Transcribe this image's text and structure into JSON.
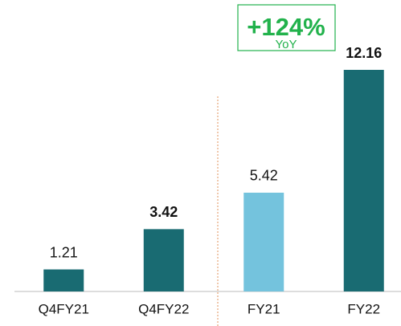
{
  "chart_data": {
    "type": "bar",
    "categories": [
      "Q4FY21",
      "Q4FY22",
      "FY21",
      "FY22"
    ],
    "values": [
      1.21,
      3.42,
      5.42,
      12.16
    ],
    "colors": [
      "#196b72",
      "#196b72",
      "#74c3dd",
      "#196b72"
    ],
    "bold_labels": [
      false,
      true,
      false,
      true
    ],
    "annotation": {
      "text": "+124%",
      "subtext": "YoY",
      "color": "#22b24c"
    }
  }
}
